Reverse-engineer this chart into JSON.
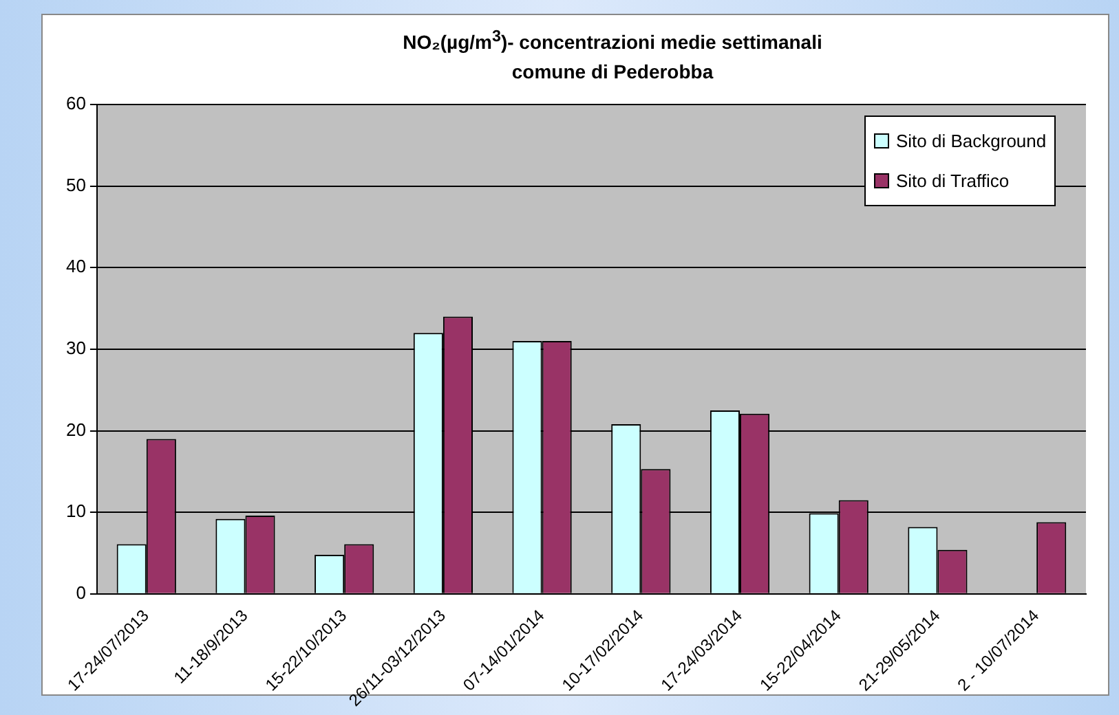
{
  "chart_data": {
    "type": "bar",
    "title": "NO₂(µg/m$^{3}$)- concentrazioni medie settimanali",
    "subtitle": "comune di Pederobba",
    "categories": [
      "17-24/07/2013",
      "11-18/9/2013",
      "15-22/10/2013",
      "26/11-03/12/2013",
      "07-14/01/2014",
      "10-17/02/2014",
      "17-24/03/2014",
      "15-22/04/2014",
      "21-29/05/2014",
      "2 - 10/07/2014"
    ],
    "series": [
      {
        "name": "Sito di Background",
        "color": "#ccffff",
        "values": [
          6.1,
          9.2,
          4.8,
          32,
          31,
          20.8,
          22.5,
          9.9,
          8.2,
          null
        ]
      },
      {
        "name": "Sito di Traffico",
        "color": "#993366",
        "values": [
          19,
          9.6,
          6.1,
          34,
          31,
          15.3,
          22.1,
          11.5,
          5.4,
          8.8
        ]
      }
    ],
    "ylim": [
      0,
      60
    ],
    "yticks": [
      0,
      10,
      20,
      30,
      40,
      50,
      60
    ],
    "grid": "y",
    "legend": "top right"
  }
}
